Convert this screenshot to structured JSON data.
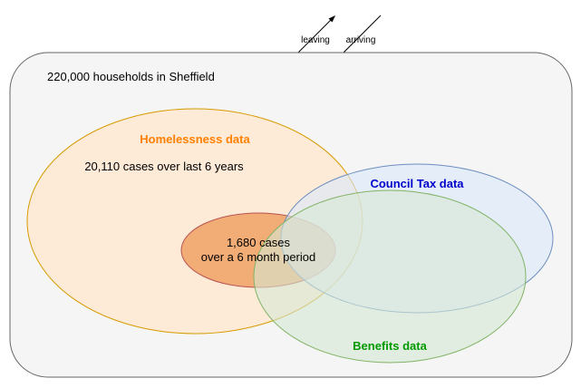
{
  "flow": {
    "leaving_label": "leaving",
    "arriving_label": "arriving"
  },
  "container": {
    "label": "220,000 households in Sheffield"
  },
  "homelessness": {
    "title": "Homelessness data",
    "subtitle": "20,110 cases over last 6 years"
  },
  "subset": {
    "line1": "1,680 cases",
    "line2": "over a 6 month period"
  },
  "council_tax": {
    "title": "Council Tax data"
  },
  "benefits": {
    "title": "Benefits data"
  },
  "colors": {
    "homelessness_title": "#ff8000",
    "council_tax_title": "#0000cc",
    "benefits_title": "#009900",
    "container_fill": "#f5f5f5",
    "container_stroke": "#666666",
    "homelessness_fill": "#ffe6cc",
    "homelessness_stroke": "#d79b00",
    "subset_fill": "#f0a165",
    "subset_stroke": "#b85450",
    "council_tax_fill": "#dae8fc",
    "council_tax_stroke": "#6c8ebf",
    "benefits_fill": "#d5e8d4",
    "benefits_stroke": "#82b366"
  }
}
